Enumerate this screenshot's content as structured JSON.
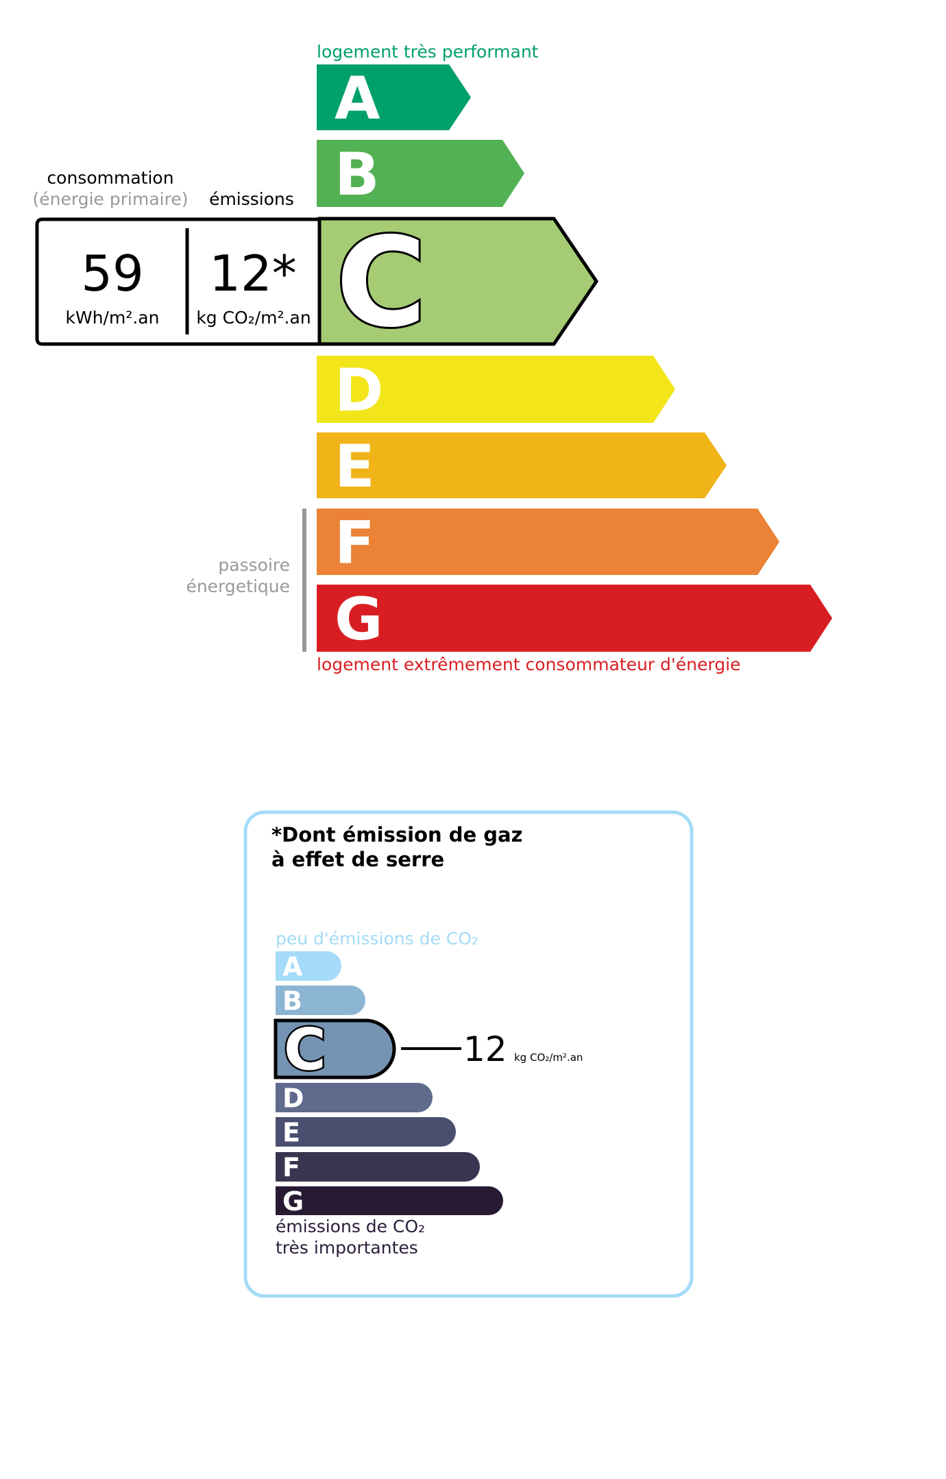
{
  "energy_label": {
    "top_label": "logement très performant",
    "bottom_label": "logement extrêmement consommateur d'énergie",
    "passoire_line1": "passoire",
    "passoire_line2": "énergetique",
    "consumption_header": "consommation",
    "consumption_subheader": "(énergie primaire)",
    "emissions_header": "émissions",
    "consumption_value": "59",
    "consumption_unit": "kWh/m².an",
    "emissions_value": "12*",
    "emissions_unit": "kg CO₂/m².an",
    "selected_class": "C",
    "classes": [
      {
        "letter": "A",
        "color": "#00a06b"
      },
      {
        "letter": "B",
        "color": "#52b153"
      },
      {
        "letter": "C",
        "color": "#a5cc74"
      },
      {
        "letter": "D",
        "color": "#f2e61b"
      },
      {
        "letter": "E",
        "color": "#f0b419"
      },
      {
        "letter": "F",
        "color": "#eb8235"
      },
      {
        "letter": "G",
        "color": "#d81e22"
      }
    ],
    "top_label_color": "#00a06b",
    "bottom_label_color": "#d81e22"
  },
  "ghg_label": {
    "title_line1": "*Dont émission de gaz",
    "title_line2": "à effet de serre",
    "top_label": "peu d'émissions de CO₂",
    "bottom_label_line1": "émissions de CO₂",
    "bottom_label_line2": "très importantes",
    "value": "12",
    "unit": "kg CO₂/m².an",
    "selected_class": "C",
    "border_color": "#a4dbf7",
    "classes": [
      {
        "letter": "A",
        "color": "#a4dbf8"
      },
      {
        "letter": "B",
        "color": "#8cb4d3"
      },
      {
        "letter": "C",
        "color": "#7593b3"
      },
      {
        "letter": "D",
        "color": "#5f6b8c"
      },
      {
        "letter": "E",
        "color": "#4b4f6f"
      },
      {
        "letter": "F",
        "color": "#383550"
      },
      {
        "letter": "G",
        "color": "#291a34"
      }
    ]
  }
}
